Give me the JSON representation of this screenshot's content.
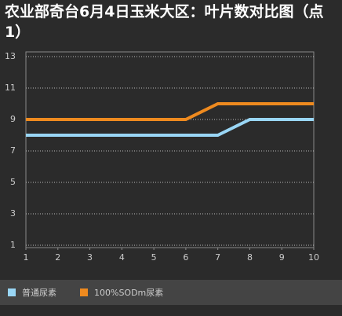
{
  "chart_data": {
    "type": "line",
    "title": "农业部奇台6月4日玉米大区：叶片数对比图（点1）",
    "x": [
      1,
      2,
      3,
      4,
      5,
      6,
      7,
      8,
      9,
      10
    ],
    "xlim": [
      1,
      10
    ],
    "xticks": [
      1,
      2,
      3,
      4,
      5,
      6,
      7,
      8,
      9,
      10
    ],
    "ylim": [
      1,
      13
    ],
    "yticks": [
      1,
      3,
      5,
      7,
      9,
      11,
      13
    ],
    "grid": true,
    "series": [
      {
        "name": "普通尿素",
        "color": "#99d6f5",
        "values": [
          8,
          8,
          8,
          8,
          8,
          8,
          8,
          9,
          9,
          9
        ]
      },
      {
        "name": "100%SODm尿素",
        "color": "#ee8a1f",
        "values": [
          9,
          9,
          9,
          9,
          9,
          9,
          10,
          10,
          10,
          10
        ]
      }
    ]
  }
}
